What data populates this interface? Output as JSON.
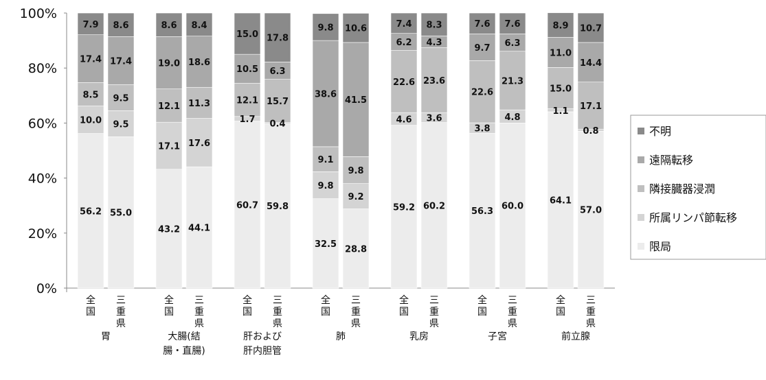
{
  "chart_data": {
    "type": "bar",
    "stacked": true,
    "percent": true,
    "title": "",
    "xlabel": "",
    "ylabel": "",
    "ylim": [
      0,
      100
    ],
    "yticks": [
      "0%",
      "20%",
      "40%",
      "60%",
      "80%",
      "100%"
    ],
    "legend_position": "right",
    "groups": [
      {
        "name": "胃",
        "lines": [
          "胃"
        ]
      },
      {
        "name": "大腸(結腸・直腸)",
        "lines": [
          "大腸(結",
          "腸・直腸)"
        ]
      },
      {
        "name": "肝および肝内胆管",
        "lines": [
          "肝および",
          "肝内胆管"
        ]
      },
      {
        "name": "肺",
        "lines": [
          "肺"
        ]
      },
      {
        "name": "乳房",
        "lines": [
          "乳房"
        ]
      },
      {
        "name": "子宮",
        "lines": [
          "子宮"
        ]
      },
      {
        "name": "前立腺",
        "lines": [
          "前立腺"
        ]
      }
    ],
    "sub_categories": [
      "全国",
      "三重県"
    ],
    "series": [
      {
        "name": "限局",
        "color": "#ececec",
        "values": [
          [
            56.2,
            55.0
          ],
          [
            43.2,
            44.1
          ],
          [
            60.7,
            59.8
          ],
          [
            32.5,
            28.8
          ],
          [
            59.2,
            60.2
          ],
          [
            56.3,
            60.0
          ],
          [
            64.1,
            57.0
          ]
        ]
      },
      {
        "name": "所属リンパ節転移",
        "color": "#d4d4d4",
        "values": [
          [
            10.0,
            9.5
          ],
          [
            17.1,
            17.6
          ],
          [
            1.7,
            0.4
          ],
          [
            9.8,
            9.2
          ],
          [
            4.6,
            3.6
          ],
          [
            3.8,
            4.8
          ],
          [
            1.1,
            0.8
          ]
        ]
      },
      {
        "name": "隣接臓器浸潤",
        "color": "#bfbfbf",
        "values": [
          [
            8.5,
            9.5
          ],
          [
            12.1,
            11.3
          ],
          [
            12.1,
            15.7
          ],
          [
            9.1,
            9.8
          ],
          [
            22.6,
            23.6
          ],
          [
            22.6,
            21.3
          ],
          [
            15.0,
            17.1
          ]
        ]
      },
      {
        "name": "遠隔転移",
        "color": "#a9a9a9",
        "values": [
          [
            17.4,
            17.4
          ],
          [
            19.0,
            18.6
          ],
          [
            10.5,
            6.3
          ],
          [
            38.6,
            41.5
          ],
          [
            6.2,
            4.3
          ],
          [
            9.7,
            6.3
          ],
          [
            11.0,
            14.4
          ]
        ]
      },
      {
        "name": "不明",
        "color": "#8a8a8a",
        "values": [
          [
            7.9,
            8.6
          ],
          [
            8.6,
            8.4
          ],
          [
            15.0,
            17.8
          ],
          [
            9.8,
            10.6
          ],
          [
            7.4,
            8.3
          ],
          [
            7.6,
            7.6
          ],
          [
            8.9,
            10.7
          ]
        ]
      }
    ],
    "legend_order": [
      "不明",
      "遠隔転移",
      "隣接臓器浸潤",
      "所属リンパ節転移",
      "限局"
    ]
  }
}
